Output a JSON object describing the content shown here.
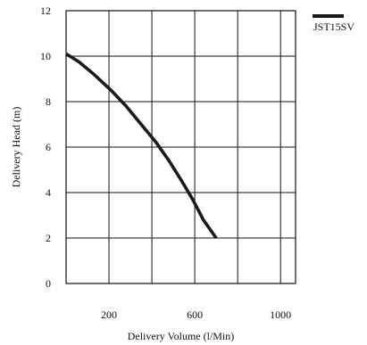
{
  "chart_data": {
    "type": "line",
    "title": "",
    "xlabel": "Delivery Volume (l/Min)",
    "ylabel": "Delivery Head (m)",
    "xlim": [
      0,
      1070
    ],
    "ylim": [
      0,
      12
    ],
    "x_tick_values": [
      200,
      400,
      600,
      800,
      1000
    ],
    "x_tick_labels": [
      "200",
      "",
      "600",
      "",
      "1000"
    ],
    "y_ticks": [
      0,
      2,
      4,
      6,
      8,
      10,
      12
    ],
    "grid": true,
    "legend_position": "top-right",
    "series": [
      {
        "name": "JST15SV",
        "color": "#1a1a1a",
        "points": [
          {
            "x": 0,
            "y": 10.1
          },
          {
            "x": 60,
            "y": 9.75
          },
          {
            "x": 130,
            "y": 9.2
          },
          {
            "x": 210,
            "y": 8.5
          },
          {
            "x": 280,
            "y": 7.8
          },
          {
            "x": 350,
            "y": 7.0
          },
          {
            "x": 420,
            "y": 6.2
          },
          {
            "x": 480,
            "y": 5.4
          },
          {
            "x": 540,
            "y": 4.5
          },
          {
            "x": 590,
            "y": 3.7
          },
          {
            "x": 640,
            "y": 2.8
          },
          {
            "x": 700,
            "y": 2.0
          }
        ]
      }
    ]
  }
}
